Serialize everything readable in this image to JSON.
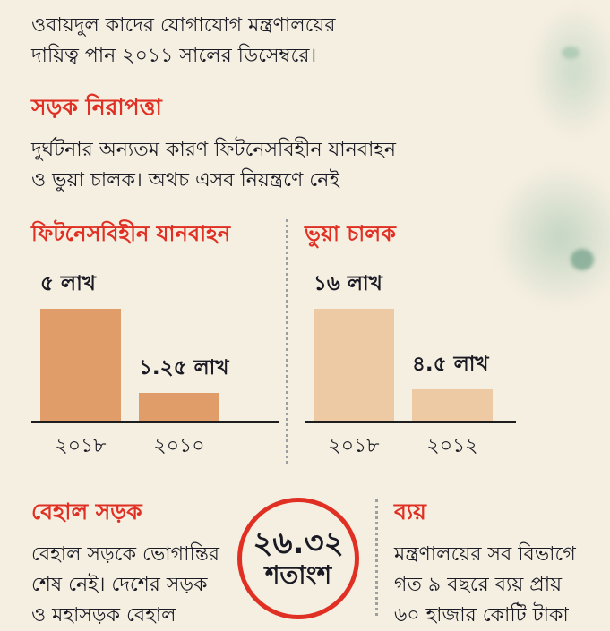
{
  "colors": {
    "background": "#f5efe1",
    "accent_red": "#e03024",
    "text_dark": "#1a1a24",
    "bar_left": "#e09d6a",
    "bar_right": "#eecaa4"
  },
  "intro": {
    "line1": "ওবায়দুল কাদের যোগাযোগ মন্ত্রণালয়ের",
    "line2": "দায়িত্ব পান ২০১১ সালের ডিসেম্বরে।"
  },
  "section_road_safety": {
    "heading": "সড়ক নিরাপত্তা",
    "body_line1": "দুর্ঘটনার অন্যতম কারণ ফিটনেসবিহীন যানবাহন",
    "body_line2": "ও ভুয়া চালক। অথচ এসব নিয়ন্ত্রণে নেই"
  },
  "chart_data": [
    {
      "type": "bar",
      "title": "ফিটনেসবিহীন যানবাহন",
      "categories": [
        "২০১৮",
        "২০১০"
      ],
      "values": [
        5,
        1.25
      ],
      "value_labels": [
        "৫ লাখ",
        "১.২৫ লাখ"
      ],
      "unit": "লাখ",
      "bar_color": "#e09d6a",
      "ylim": [
        0,
        5
      ],
      "grid": false,
      "legend": "none"
    },
    {
      "type": "bar",
      "title": "ভুয়া চালক",
      "categories": [
        "২০১৮",
        "২০১২"
      ],
      "values": [
        16,
        4.5
      ],
      "value_labels": [
        "১৬ লাখ",
        "৪.৫ লাখ"
      ],
      "unit": "লাখ",
      "bar_color": "#eecaa4",
      "ylim": [
        0,
        16
      ],
      "grid": false,
      "legend": "none"
    }
  ],
  "bottom": {
    "behal": {
      "heading": "বেহাল সড়ক",
      "line1": "বেহাল সড়কে ভোগান্তির",
      "line2": "শেষ নেই। দেশের সড়ক",
      "line3": "ও মহাসড়ক বেহাল"
    },
    "circle": {
      "value": "২৬.৩২",
      "label": "শতাংশ"
    },
    "byay": {
      "heading": "ব্যয়",
      "line1": "মন্ত্রণালয়ের সব বিভাগে",
      "line2": "গত ৯ বছরে ব্যয় প্রায়",
      "line3": "৬০ হাজার কোটি টাকা"
    }
  }
}
